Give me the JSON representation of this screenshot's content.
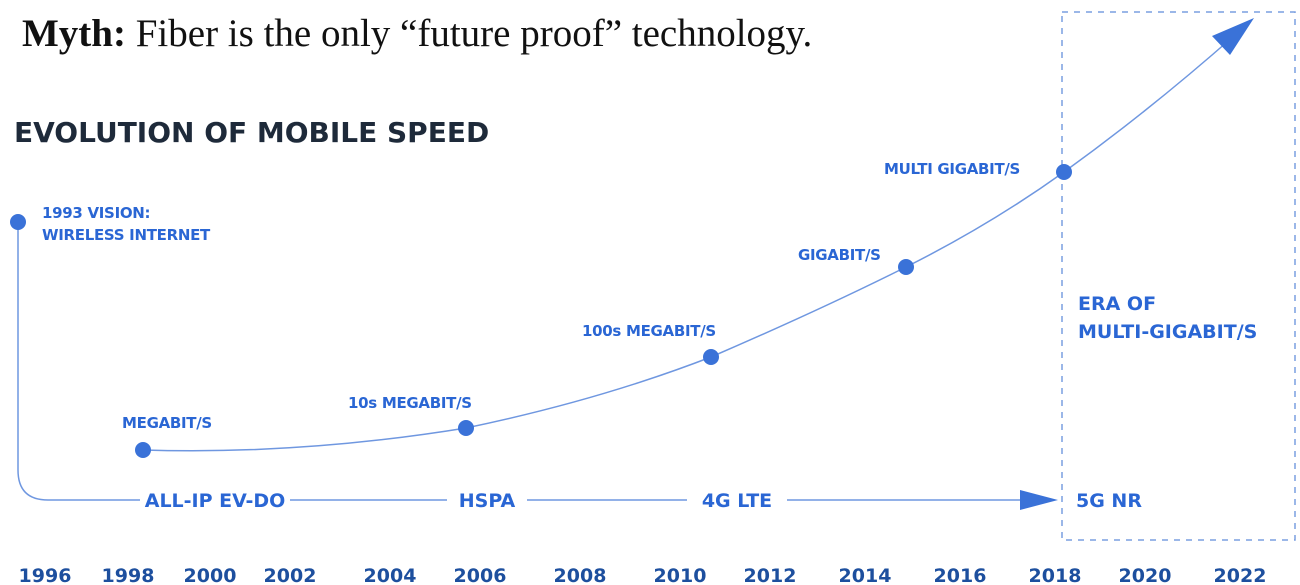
{
  "myth": {
    "lead": "Myth:",
    "text": "Fiber is the only “future proof” technology."
  },
  "title": "EVOLUTION OF MOBILE SPEED",
  "milestones": [
    {
      "lines": [
        "1993 VISION:",
        "WIRELESS INTERNET"
      ]
    },
    {
      "lines": [
        "MEGABIT/S"
      ]
    },
    {
      "lines": [
        "10s MEGABIT/S"
      ]
    },
    {
      "lines": [
        "100s MEGABIT/S"
      ]
    },
    {
      "lines": [
        "GIGABIT/S"
      ]
    },
    {
      "lines": [
        "MULTI GIGABIT/S"
      ]
    }
  ],
  "technologies": [
    "ALL-IP EV-DO",
    "HSPA",
    "4G LTE",
    "5G NR"
  ],
  "era": [
    "ERA OF",
    "MULTI-GIGABIT/S"
  ],
  "years": [
    "1996",
    "1998",
    "2000",
    "2002",
    "2004",
    "2006",
    "2008",
    "2010",
    "2012",
    "2014",
    "2016",
    "2018",
    "2020",
    "2022"
  ]
}
